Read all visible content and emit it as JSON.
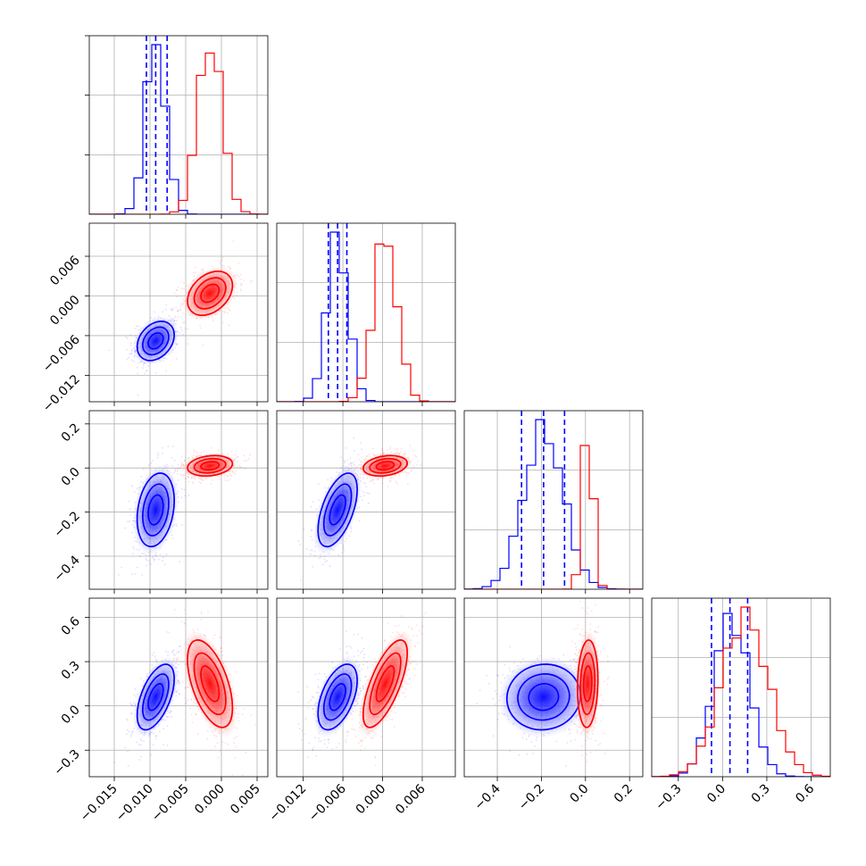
{
  "chart_data": {
    "type": "corner",
    "grid": true,
    "series_colors": {
      "blue": "#0000ff",
      "red": "#ff0000"
    },
    "parameters": [
      {
        "range": [
          -0.0185,
          0.0065
        ],
        "ticks": [
          -0.015,
          -0.01,
          -0.005,
          0.0,
          0.005
        ],
        "tick_labels": [
          "−0.015",
          "−0.010",
          "−0.005",
          "0.000",
          "0.005"
        ]
      },
      {
        "range": [
          -0.016,
          0.011
        ],
        "ticks": [
          -0.012,
          -0.006,
          0.0,
          0.006
        ],
        "tick_labels": [
          "−0.012",
          "−0.006",
          "0.000",
          "0.006"
        ]
      },
      {
        "range": [
          -0.55,
          0.26
        ],
        "ticks": [
          -0.4,
          -0.2,
          0.0,
          0.2
        ],
        "tick_labels": [
          "−0.4",
          "−0.2",
          "0.0",
          "0.2"
        ]
      },
      {
        "range": [
          -0.48,
          0.73
        ],
        "ticks": [
          -0.3,
          0.0,
          0.3,
          0.6
        ],
        "tick_labels": [
          "−0.3",
          "0.0",
          "0.3",
          "0.6"
        ]
      }
    ],
    "series": [
      {
        "color": "blue",
        "mean": [
          -0.0092,
          -0.0068,
          -0.19,
          0.06
        ],
        "sd": [
          0.0014,
          0.0016,
          0.09,
          0.12
        ],
        "quantiles": [
          [
            -0.0105,
            -0.0092,
            -0.0076
          ],
          [
            -0.0082,
            -0.0068,
            -0.0054
          ],
          [
            -0.29,
            -0.19,
            -0.095
          ],
          [
            -0.075,
            0.05,
            0.17
          ]
        ]
      },
      {
        "color": "red",
        "mean": [
          -0.0016,
          0.0004,
          0.01,
          0.15
        ],
        "sd": [
          0.0017,
          0.0018,
          0.025,
          0.16
        ],
        "quantiles": []
      }
    ]
  }
}
